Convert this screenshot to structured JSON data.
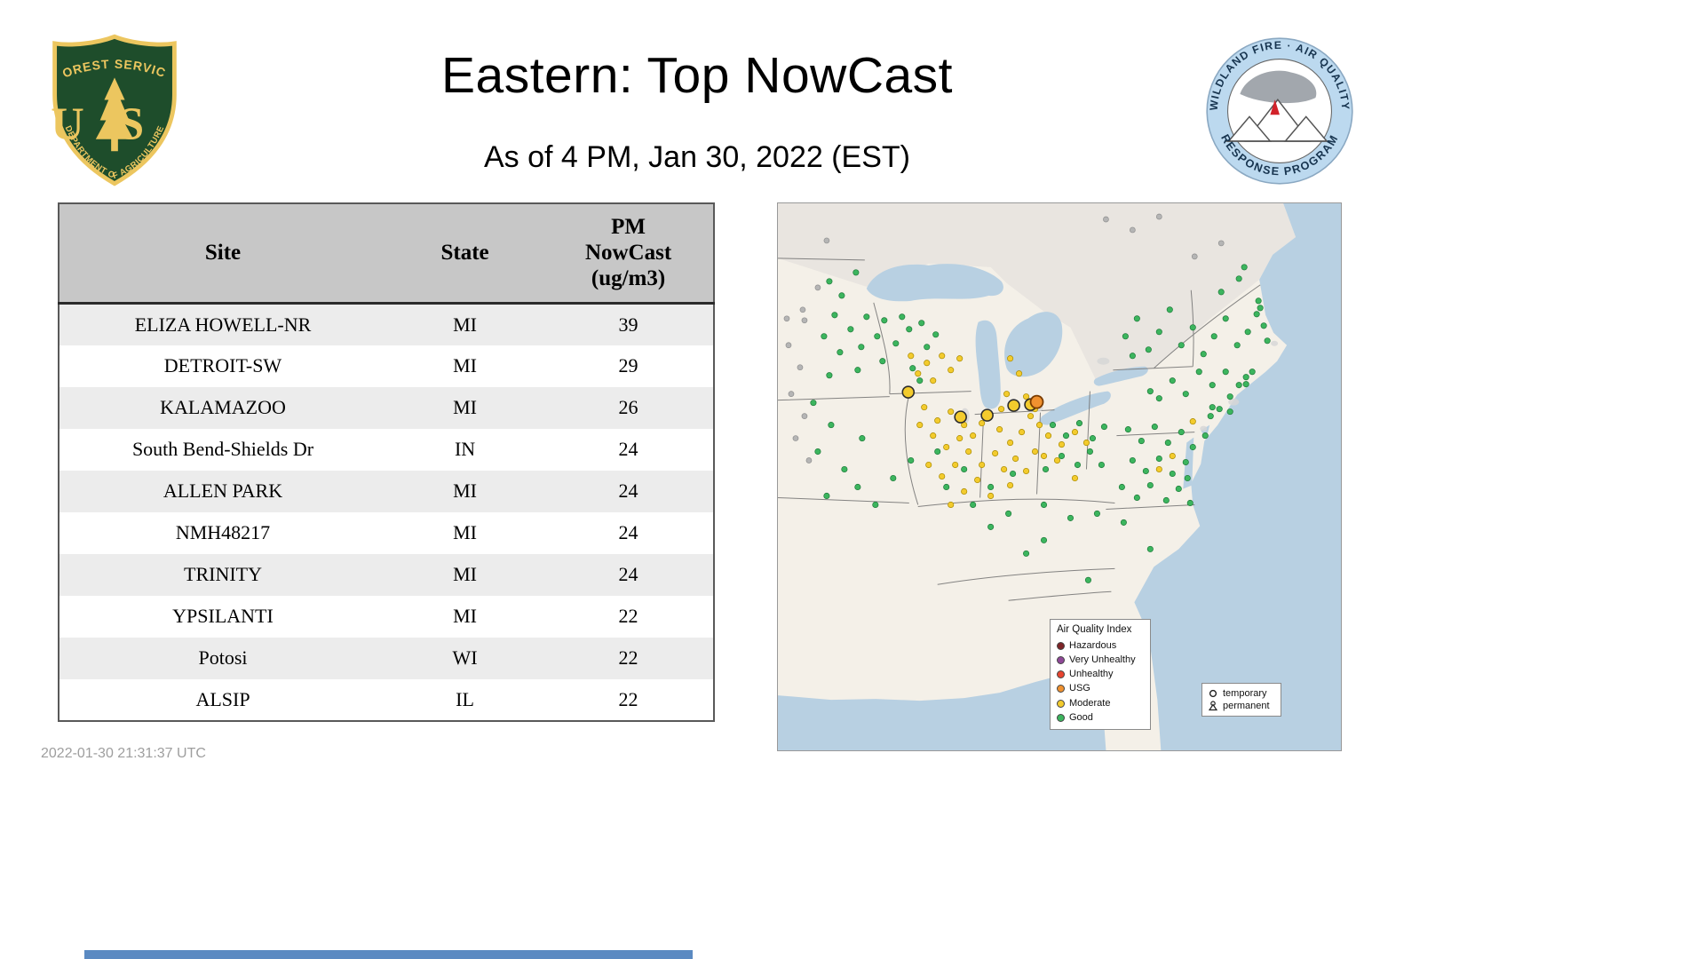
{
  "header": {
    "title": "Eastern: Top NowCast",
    "subtitle": "As of  4 PM, Jan 30, 2022 (EST)"
  },
  "logos": {
    "forest_service": {
      "arc_top": "FOREST SERVICE",
      "monogram": "US",
      "arc_bottom": "DEPARTMENT OF AGRICULTURE"
    },
    "air_quality_program": {
      "arc_top": "WILDLAND FIRE · AIR QUALITY",
      "arc_bottom": "RESPONSE PROGRAM"
    }
  },
  "table": {
    "columns": [
      "Site",
      "State",
      "PM NowCast (ug/m3)"
    ],
    "rows": [
      {
        "site": "ELIZA HOWELL-NR",
        "state": "MI",
        "value": "39"
      },
      {
        "site": "DETROIT-SW",
        "state": "MI",
        "value": "29"
      },
      {
        "site": "KALAMAZOO",
        "state": "MI",
        "value": "26"
      },
      {
        "site": "South Bend-Shields Dr",
        "state": "IN",
        "value": "24"
      },
      {
        "site": "ALLEN PARK",
        "state": "MI",
        "value": "24"
      },
      {
        "site": "NMH48217",
        "state": "MI",
        "value": "24"
      },
      {
        "site": "TRINITY",
        "state": "MI",
        "value": "24"
      },
      {
        "site": "YPSILANTI",
        "state": "MI",
        "value": "22"
      },
      {
        "site": "Potosi",
        "state": "WI",
        "value": "22"
      },
      {
        "site": "ALSIP",
        "state": "IL",
        "value": "22"
      }
    ]
  },
  "map": {
    "legend": {
      "title": "Air Quality Index",
      "items": [
        {
          "label": "Hazardous",
          "color": "#7d2427"
        },
        {
          "label": "Very Unhealthy",
          "color": "#8f4898"
        },
        {
          "label": "Unhealthy",
          "color": "#e8442f"
        },
        {
          "label": "USG",
          "color": "#f0912f"
        },
        {
          "label": "Moderate",
          "color": "#f3cb2d"
        },
        {
          "label": "Good",
          "color": "#3cb55e"
        }
      ]
    },
    "marker_legend": [
      {
        "label": "temporary",
        "symbol": "circle"
      },
      {
        "label": "permanent",
        "symbol": "triangle"
      }
    ],
    "colors": {
      "good": "#3cb55e",
      "moderate": "#f3cb2d",
      "usg": "#f0912f",
      "inactive": "#b5b5b5"
    },
    "points": {
      "good": [
        [
          58,
          88
        ],
        [
          72,
          104
        ],
        [
          88,
          78
        ],
        [
          64,
          126
        ],
        [
          82,
          142
        ],
        [
          100,
          128
        ],
        [
          112,
          150
        ],
        [
          94,
          162
        ],
        [
          70,
          168
        ],
        [
          52,
          150
        ],
        [
          120,
          132
        ],
        [
          133,
          158
        ],
        [
          148,
          142
        ],
        [
          58,
          194
        ],
        [
          90,
          188
        ],
        [
          118,
          178
        ],
        [
          140,
          128
        ],
        [
          162,
          135
        ],
        [
          178,
          148
        ],
        [
          152,
          186
        ],
        [
          168,
          162
        ],
        [
          160,
          200
        ],
        [
          60,
          250
        ],
        [
          45,
          280
        ],
        [
          75,
          300
        ],
        [
          55,
          330
        ],
        [
          90,
          320
        ],
        [
          40,
          225
        ],
        [
          110,
          340
        ],
        [
          130,
          310
        ],
        [
          95,
          265
        ],
        [
          150,
          290
        ],
        [
          180,
          280
        ],
        [
          210,
          300
        ],
        [
          240,
          320
        ],
        [
          265,
          305
        ],
        [
          190,
          320
        ],
        [
          220,
          340
        ],
        [
          392,
          150
        ],
        [
          405,
          130
        ],
        [
          418,
          165
        ],
        [
          430,
          145
        ],
        [
          442,
          120
        ],
        [
          455,
          160
        ],
        [
          468,
          140
        ],
        [
          480,
          170
        ],
        [
          492,
          150
        ],
        [
          505,
          130
        ],
        [
          518,
          160
        ],
        [
          530,
          145
        ],
        [
          540,
          125
        ],
        [
          552,
          155
        ],
        [
          548,
          138
        ],
        [
          544,
          118
        ],
        [
          542,
          110
        ],
        [
          526,
          72
        ],
        [
          500,
          100
        ],
        [
          520,
          85
        ],
        [
          475,
          190
        ],
        [
          490,
          205
        ],
        [
          505,
          190
        ],
        [
          520,
          205
        ],
        [
          535,
          190
        ],
        [
          528,
          204
        ],
        [
          528,
          196
        ],
        [
          460,
          215
        ],
        [
          445,
          200
        ],
        [
          430,
          220
        ],
        [
          420,
          212
        ],
        [
          400,
          172
        ],
        [
          490,
          230
        ],
        [
          510,
          218
        ],
        [
          498,
          232
        ],
        [
          488,
          240
        ],
        [
          510,
          235
        ],
        [
          395,
          255
        ],
        [
          410,
          268
        ],
        [
          425,
          252
        ],
        [
          440,
          270
        ],
        [
          455,
          258
        ],
        [
          468,
          275
        ],
        [
          482,
          262
        ],
        [
          400,
          290
        ],
        [
          415,
          302
        ],
        [
          430,
          288
        ],
        [
          445,
          305
        ],
        [
          460,
          292
        ],
        [
          462,
          310
        ],
        [
          388,
          320
        ],
        [
          405,
          332
        ],
        [
          420,
          318
        ],
        [
          438,
          335
        ],
        [
          452,
          322
        ],
        [
          465,
          338
        ],
        [
          310,
          250
        ],
        [
          325,
          262
        ],
        [
          340,
          248
        ],
        [
          355,
          265
        ],
        [
          368,
          252
        ],
        [
          320,
          285
        ],
        [
          338,
          295
        ],
        [
          352,
          280
        ],
        [
          365,
          295
        ],
        [
          302,
          300
        ],
        [
          330,
          355
        ],
        [
          390,
          360
        ],
        [
          420,
          390
        ],
        [
          280,
          395
        ],
        [
          240,
          365
        ],
        [
          350,
          425
        ],
        [
          300,
          340
        ],
        [
          360,
          350
        ],
        [
          300,
          380
        ],
        [
          260,
          350
        ]
      ],
      "moderate": [
        [
          150,
          172
        ],
        [
          168,
          180
        ],
        [
          185,
          172
        ],
        [
          158,
          192
        ],
        [
          175,
          200
        ],
        [
          195,
          188
        ],
        [
          205,
          175
        ],
        [
          165,
          230
        ],
        [
          180,
          245
        ],
        [
          195,
          235
        ],
        [
          210,
          250
        ],
        [
          175,
          262
        ],
        [
          190,
          275
        ],
        [
          205,
          265
        ],
        [
          160,
          250
        ],
        [
          220,
          262
        ],
        [
          230,
          248
        ],
        [
          215,
          280
        ],
        [
          200,
          295
        ],
        [
          185,
          308
        ],
        [
          170,
          295
        ],
        [
          230,
          295
        ],
        [
          245,
          282
        ],
        [
          225,
          312
        ],
        [
          210,
          325
        ],
        [
          195,
          340
        ],
        [
          240,
          330
        ],
        [
          250,
          255
        ],
        [
          262,
          270
        ],
        [
          275,
          258
        ],
        [
          268,
          288
        ],
        [
          255,
          300
        ],
        [
          280,
          302
        ],
        [
          290,
          280
        ],
        [
          262,
          318
        ],
        [
          262,
          175
        ],
        [
          272,
          192
        ],
        [
          258,
          215
        ],
        [
          268,
          225
        ],
        [
          280,
          218
        ],
        [
          290,
          232
        ],
        [
          252,
          232
        ],
        [
          305,
          262
        ],
        [
          320,
          272
        ],
        [
          335,
          258
        ],
        [
          348,
          270
        ],
        [
          315,
          290
        ],
        [
          300,
          285
        ],
        [
          285,
          240
        ],
        [
          295,
          250
        ],
        [
          468,
          246
        ],
        [
          445,
          285
        ],
        [
          430,
          300
        ],
        [
          335,
          310
        ]
      ],
      "inactive": [
        [
          12,
          160
        ],
        [
          25,
          185
        ],
        [
          15,
          215
        ],
        [
          30,
          240
        ],
        [
          20,
          265
        ],
        [
          35,
          290
        ],
        [
          10,
          130
        ],
        [
          45,
          95
        ],
        [
          28,
          120
        ],
        [
          30,
          132
        ],
        [
          370,
          18
        ],
        [
          400,
          30
        ],
        [
          430,
          15
        ],
        [
          470,
          60
        ],
        [
          500,
          45
        ],
        [
          55,
          42
        ]
      ],
      "large_moderate": [
        [
          147,
          213
        ],
        [
          206,
          241
        ],
        [
          236,
          239
        ],
        [
          266,
          228
        ],
        [
          285,
          227
        ]
      ],
      "large_usg": [
        [
          292,
          224
        ]
      ]
    }
  },
  "footer": {
    "timestamp": "2022-01-30 21:31:37 UTC"
  }
}
